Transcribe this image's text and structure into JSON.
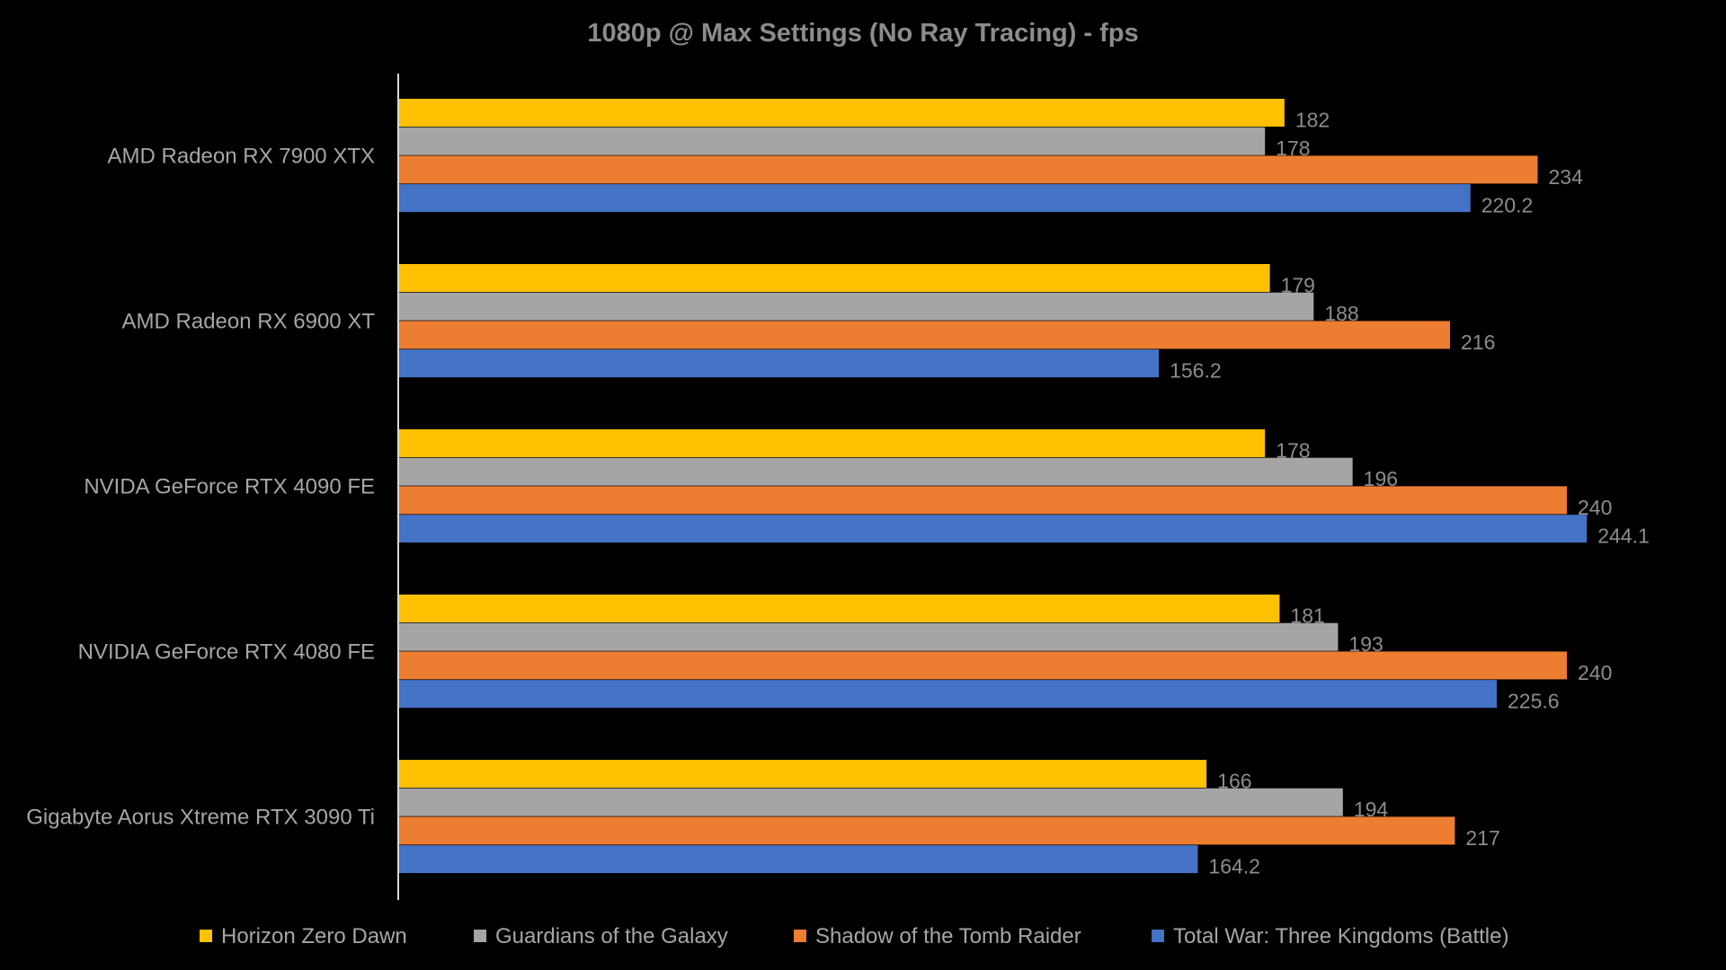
{
  "chart_data": {
    "type": "bar",
    "orientation": "horizontal",
    "title": "1080p @ Max Settings (No Ray Tracing) - fps",
    "categories": [
      "AMD Radeon RX 7900 XTX",
      "AMD Radeon RX 6900 XT",
      "NVIDA GeForce RTX 4090 FE",
      "NVIDIA GeForce RTX 4080 FE",
      "Gigabyte Aorus Xtreme RTX 3090 Ti"
    ],
    "series": [
      {
        "name": "Horizon Zero Dawn",
        "color": "#ffc000",
        "values": [
          182,
          179,
          178,
          181,
          166
        ]
      },
      {
        "name": "Guardians of the Galaxy",
        "color": "#a5a5a5",
        "values": [
          178,
          188,
          196,
          193,
          194
        ]
      },
      {
        "name": "Shadow of the Tomb Raider",
        "color": "#ed7d31",
        "values": [
          234,
          216,
          240,
          240,
          217
        ]
      },
      {
        "name": "Total War: Three Kingdoms (Battle)",
        "color": "#4472c4",
        "values": [
          220.2,
          156.2,
          244.1,
          225.6,
          164.2
        ]
      }
    ],
    "value_labels": [
      [
        "182",
        "179",
        "178",
        "181",
        "166"
      ],
      [
        "178",
        "188",
        "196",
        "193",
        "194"
      ],
      [
        "234",
        "216",
        "240",
        "240",
        "217"
      ],
      [
        "220.2",
        "156.2",
        "244.1",
        "225.6",
        "164.2"
      ]
    ],
    "xlim": [
      0,
      300
    ],
    "grid": false,
    "legend_position": "bottom",
    "colors": {
      "background": "#000000",
      "text": "#a6a6a6",
      "axis": "#d9d9d9"
    }
  }
}
